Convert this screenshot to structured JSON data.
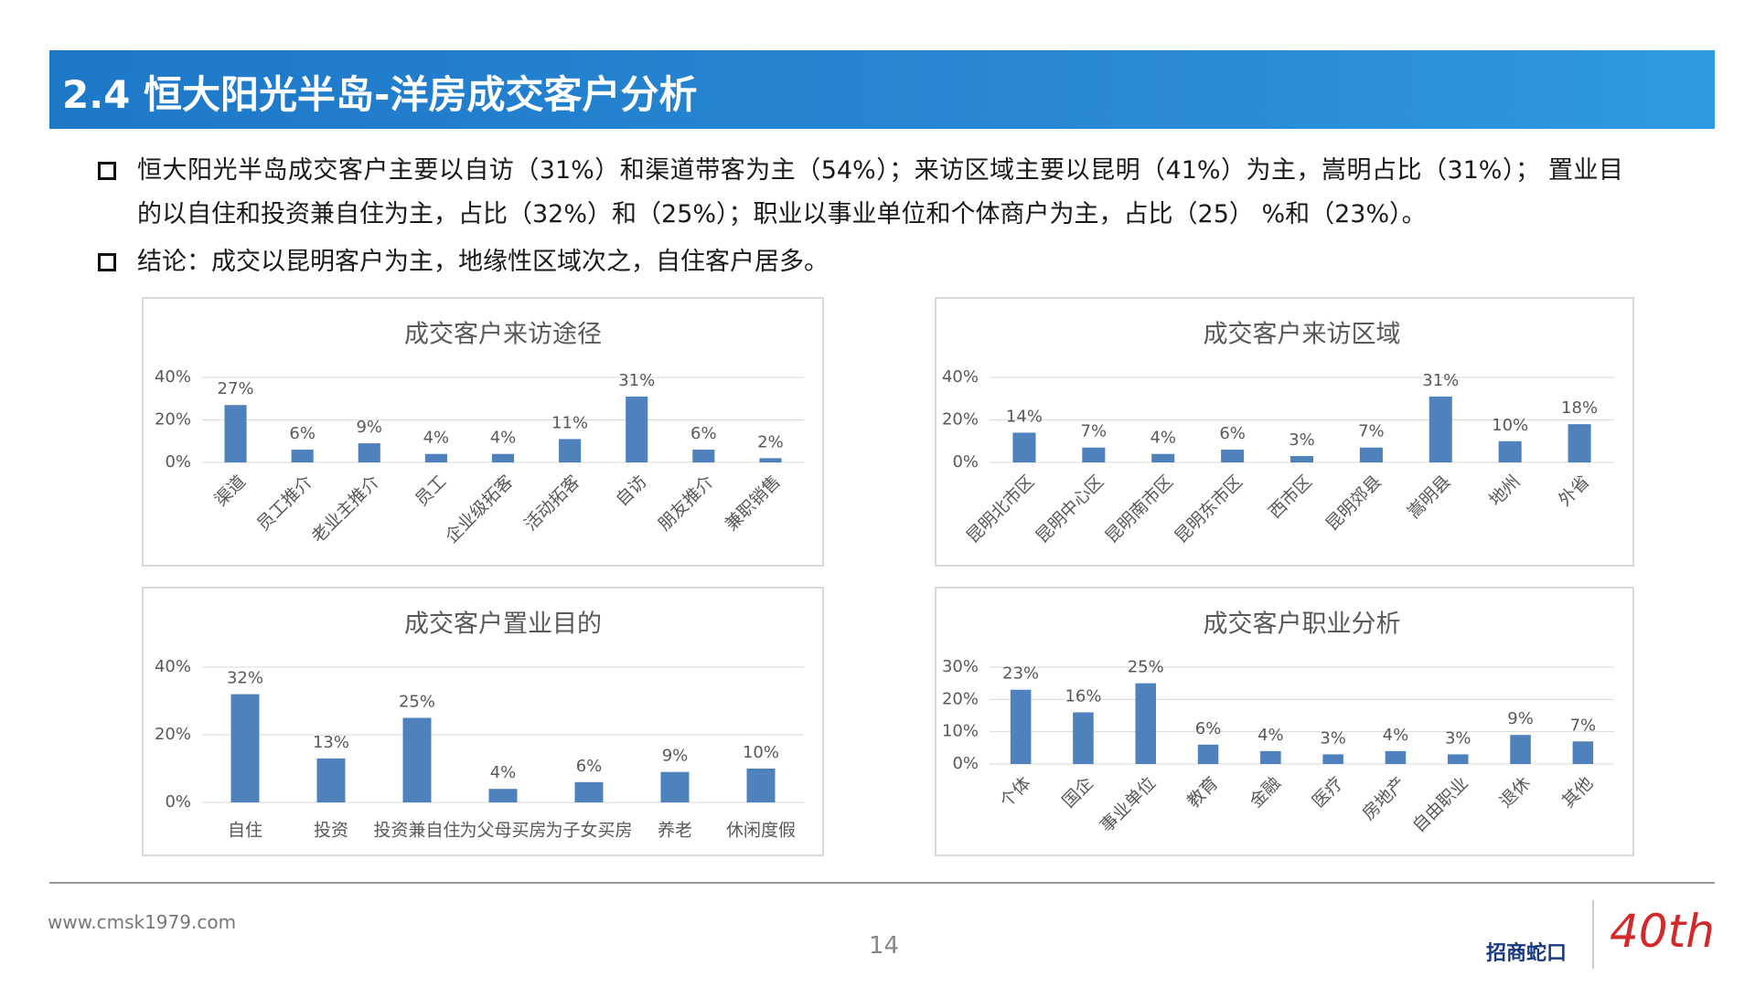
{
  "title": "2.4 恒大阳光半岛-洋房成交客户分析",
  "bullets": [
    "恒大阳光半岛成交客户主要以自访（31%）和渠道带客为主（54%）；来访区域主要以昆明（41%）为主，嵩明占比（31%）； 置业目的以自住和投资兼自住为主，占比（32%）和（25%）；职业以事业单位和个体商户为主，占比（25） %和（23%）。",
    "结论：成交以昆明客户为主，地缘性区域次之，自住客户居多。"
  ],
  "chart_data": [
    {
      "type": "bar",
      "title": "成交客户来访途径",
      "color": "#4f81bd",
      "grid": true,
      "categories": [
        "渠道",
        "员工推介",
        "老业主推介",
        "员工",
        "企业级拓客",
        "活动拓客",
        "自访",
        "朋友推介",
        "兼职销售"
      ],
      "values": [
        27,
        6,
        9,
        4,
        4,
        11,
        31,
        6,
        2
      ],
      "value_labels": [
        "27%",
        "6%",
        "9%",
        "4%",
        "4%",
        "11%",
        "31%",
        "6%",
        "2%"
      ],
      "ylim": [
        0,
        40
      ],
      "yticks": [
        {
          "value": 0,
          "label": "0%"
        },
        {
          "value": 20,
          "label": "20%"
        },
        {
          "value": 40,
          "label": "40%"
        }
      ]
    },
    {
      "type": "bar",
      "title": "成交客户来访区域",
      "color": "#4f81bd",
      "grid": true,
      "categories": [
        "昆明北市区",
        "昆明中心区",
        "昆明南市区",
        "昆明东市区",
        "西市区",
        "昆明郊县",
        "嵩明县",
        "地州",
        "外省"
      ],
      "values": [
        14,
        7,
        4,
        6,
        3,
        7,
        31,
        10,
        18
      ],
      "value_labels": [
        "14%",
        "7%",
        "4%",
        "6%",
        "3%",
        "7%",
        "31%",
        "10%",
        "18%"
      ],
      "ylim": [
        0,
        40
      ],
      "yticks": [
        {
          "value": 0,
          "label": "0%"
        },
        {
          "value": 20,
          "label": "20%"
        },
        {
          "value": 40,
          "label": "40%"
        }
      ]
    },
    {
      "type": "bar",
      "title": "成交客户置业目的",
      "color": "#4f81bd",
      "grid": true,
      "categories": [
        "自住",
        "投资",
        "投资兼自住",
        "为父母买房",
        "为子女买房",
        "养老",
        "休闲度假"
      ],
      "values": [
        32,
        13,
        25,
        4,
        6,
        9,
        10
      ],
      "value_labels": [
        "32%",
        "13%",
        "25%",
        "4%",
        "6%",
        "9%",
        "10%"
      ],
      "ylim": [
        0,
        40
      ],
      "yticks": [
        {
          "value": 0,
          "label": "0%"
        },
        {
          "value": 20,
          "label": "20%"
        },
        {
          "value": 40,
          "label": "40%"
        }
      ]
    },
    {
      "type": "bar",
      "title": "成交客户职业分析",
      "color": "#4f81bd",
      "grid": true,
      "categories": [
        "个体",
        "国企",
        "事业单位",
        "教育",
        "金融",
        "医疗",
        "房地产",
        "自由职业",
        "退休",
        "其他"
      ],
      "values": [
        23,
        16,
        25,
        6,
        4,
        3,
        4,
        3,
        9,
        7
      ],
      "value_labels": [
        "23%",
        "16%",
        "25%",
        "6%",
        "4%",
        "3%",
        "4%",
        "3%",
        "9%",
        "7%"
      ],
      "ylim": [
        0,
        30
      ],
      "yticks": [
        {
          "value": 0,
          "label": "0%"
        },
        {
          "value": 10,
          "label": "10%"
        },
        {
          "value": 20,
          "label": "20%"
        },
        {
          "value": 30,
          "label": "30%"
        }
      ]
    }
  ],
  "footer": {
    "website": "www.cmsk1979.com",
    "page": "14",
    "logo": "招商蛇口",
    "anniversary": "40th"
  }
}
